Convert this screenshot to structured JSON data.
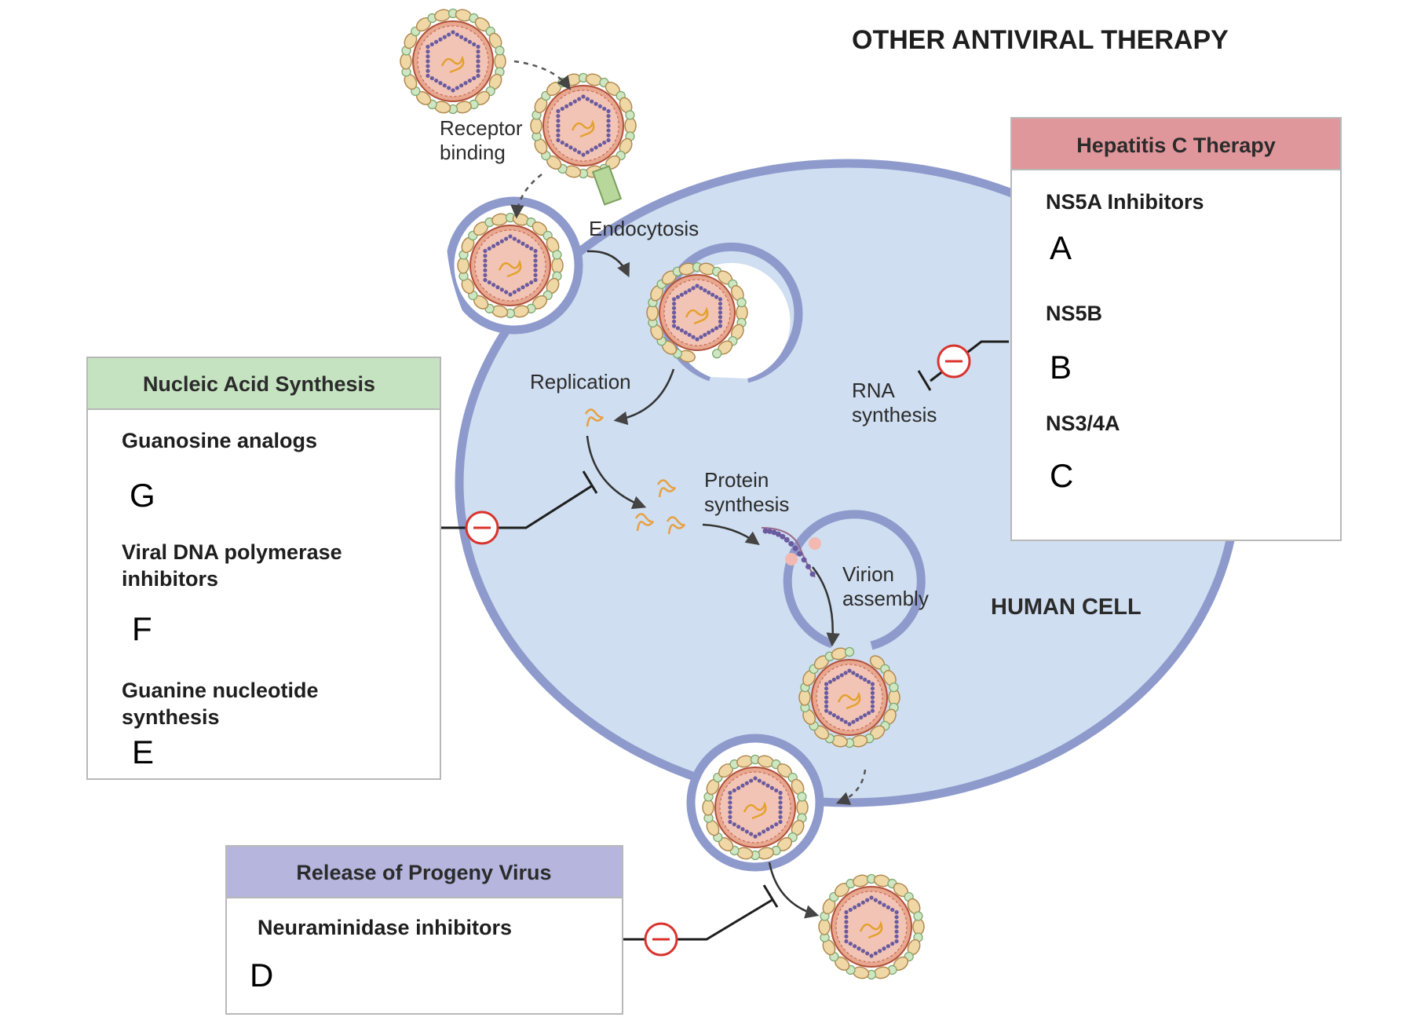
{
  "title": "OTHER ANTIVIRAL THERAPY",
  "cell_label": "HUMAN CELL",
  "steps": {
    "receptor_binding": [
      "Receptor",
      "binding"
    ],
    "endocytosis": "Endocytosis",
    "replication": "Replication",
    "protein_synthesis": [
      "Protein",
      "synthesis"
    ],
    "virion_assembly": [
      "Virion",
      "assembly"
    ],
    "rna_synthesis": [
      "RNA",
      "synthesis"
    ]
  },
  "boxes": {
    "hepatitis": {
      "header": "Hepatitis C Therapy",
      "header_color": "#e0979b",
      "items": [
        {
          "label": "NS5A Inhibitors",
          "letter": "A"
        },
        {
          "label": "NS5B",
          "letter": "B"
        },
        {
          "label": "NS3/4A",
          "letter": "C"
        }
      ]
    },
    "nucleic": {
      "header": "Nucleic Acid Synthesis",
      "header_color": "#c5e3c0",
      "items": [
        {
          "label": [
            "Guanosine analogs"
          ],
          "letter": "G"
        },
        {
          "label": [
            "Viral DNA polymerase",
            "inhibitors"
          ],
          "letter": "F"
        },
        {
          "label": [
            "Guanine nucleotide",
            "synthesis"
          ],
          "letter": "E"
        }
      ]
    },
    "release": {
      "header": "Release of Progeny Virus",
      "header_color": "#b5b5dd",
      "items": [
        {
          "label": "Neuraminidase inhibitors",
          "letter": "D"
        }
      ]
    }
  },
  "colors": {
    "cell_fill": "#cfdef0",
    "membrane": "#8e9acc",
    "inhibit_red": "#d9332d"
  }
}
